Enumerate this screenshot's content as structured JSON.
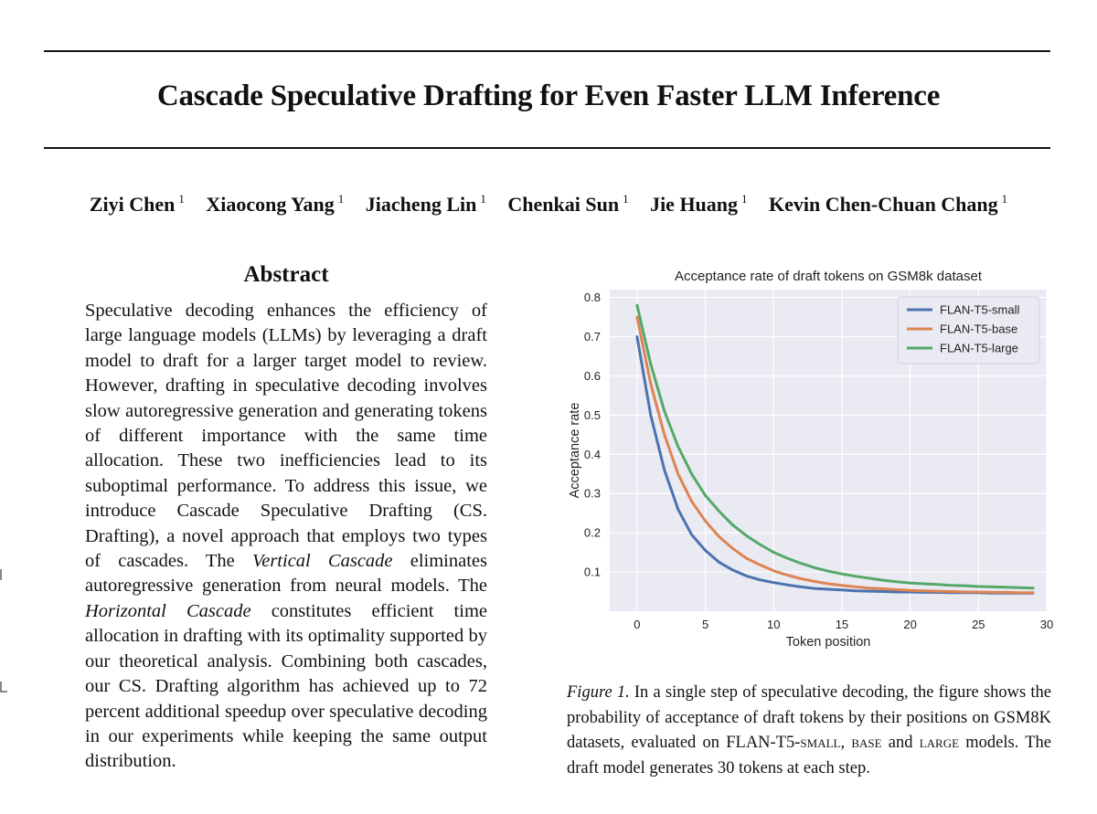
{
  "paper": {
    "title": "Cascade Speculative Drafting for Even Faster LLM Inference",
    "authors": [
      {
        "name": "Ziyi Chen",
        "affil": "1"
      },
      {
        "name": "Xiaocong Yang",
        "affil": "1"
      },
      {
        "name": "Jiacheng Lin",
        "affil": "1"
      },
      {
        "name": "Chenkai Sun",
        "affil": "1"
      },
      {
        "name": "Jie Huang",
        "affil": "1"
      },
      {
        "name": "Kevin Chen-Chuan Chang",
        "affil": "1"
      }
    ],
    "abstract_heading": "Abstract",
    "abstract": {
      "p1": "Speculative decoding enhances the efficiency of large language models (LLMs) by leveraging a draft model to draft for a larger target model to review. However, drafting in speculative decod­ing involves slow autoregressive generation and generating tokens of different importance with the same time allocation. These two inefficien­cies lead to its suboptimal performance. To ad­dress this issue, we introduce Cascade Specula­tive Drafting (CS. Drafting), a novel approach that employs two types of cascades. The ",
      "em1": "Vertical Cas­cade",
      "p2": " eliminates autoregressive generation from neural models. The ",
      "em2": "Horizontal Cascade",
      "p3": " consti­tutes efficient time allocation in drafting with its optimality supported by our theoretical analysis. Combining both cascades, our CS. Drafting al­gorithm has achieved up to 72 percent additional speedup over speculative decoding in our experi­ments while keeping the same output distribution."
    },
    "caption": {
      "label": "Figure 1.",
      "t1": " In a single step of speculative decoding, the figure shows the probability of acceptance of draft tokens by their positions on GSM8K datasets, evaluated on FLAN-T5-",
      "sc1": "small",
      "t2": ", ",
      "sc2": "base",
      "t3": " and ",
      "sc3": "large",
      "t4": " models. The draft model generates 30 tokens at each step."
    }
  },
  "chart_data": {
    "type": "line",
    "title": "Acceptance rate of draft tokens on GSM8k dataset",
    "xlabel": "Token position",
    "ylabel": "Acceptance rate",
    "xlim": [
      -2,
      30
    ],
    "ylim": [
      0.0,
      0.82
    ],
    "xticks": [
      0,
      5,
      10,
      15,
      20,
      25,
      30
    ],
    "yticks": [
      0.1,
      0.2,
      0.3,
      0.4,
      0.5,
      0.6,
      0.7,
      0.8
    ],
    "legend_position": "top-right",
    "x": [
      0,
      1,
      2,
      3,
      4,
      5,
      6,
      7,
      8,
      9,
      10,
      11,
      12,
      13,
      14,
      15,
      16,
      17,
      18,
      19,
      20,
      21,
      22,
      23,
      24,
      25,
      26,
      27,
      28,
      29
    ],
    "series": [
      {
        "name": "FLAN-T5-small",
        "color": "#4c72b0",
        "values": [
          0.7,
          0.5,
          0.36,
          0.26,
          0.195,
          0.155,
          0.125,
          0.105,
          0.09,
          0.08,
          0.073,
          0.067,
          0.062,
          0.058,
          0.056,
          0.054,
          0.052,
          0.051,
          0.05,
          0.049,
          0.049,
          0.048,
          0.048,
          0.047,
          0.047,
          0.047,
          0.046,
          0.046,
          0.046,
          0.046
        ]
      },
      {
        "name": "FLAN-T5-base",
        "color": "#dd8452",
        "values": [
          0.75,
          0.58,
          0.45,
          0.35,
          0.28,
          0.23,
          0.19,
          0.16,
          0.135,
          0.118,
          0.103,
          0.092,
          0.083,
          0.076,
          0.07,
          0.066,
          0.062,
          0.059,
          0.057,
          0.055,
          0.053,
          0.052,
          0.051,
          0.05,
          0.049,
          0.049,
          0.048,
          0.048,
          0.047,
          0.047
        ]
      },
      {
        "name": "FLAN-T5-large",
        "color": "#55a868",
        "values": [
          0.78,
          0.63,
          0.51,
          0.42,
          0.35,
          0.295,
          0.255,
          0.22,
          0.193,
          0.17,
          0.15,
          0.135,
          0.122,
          0.111,
          0.102,
          0.095,
          0.089,
          0.084,
          0.079,
          0.075,
          0.072,
          0.07,
          0.068,
          0.066,
          0.065,
          0.063,
          0.062,
          0.061,
          0.06,
          0.059
        ]
      }
    ]
  }
}
